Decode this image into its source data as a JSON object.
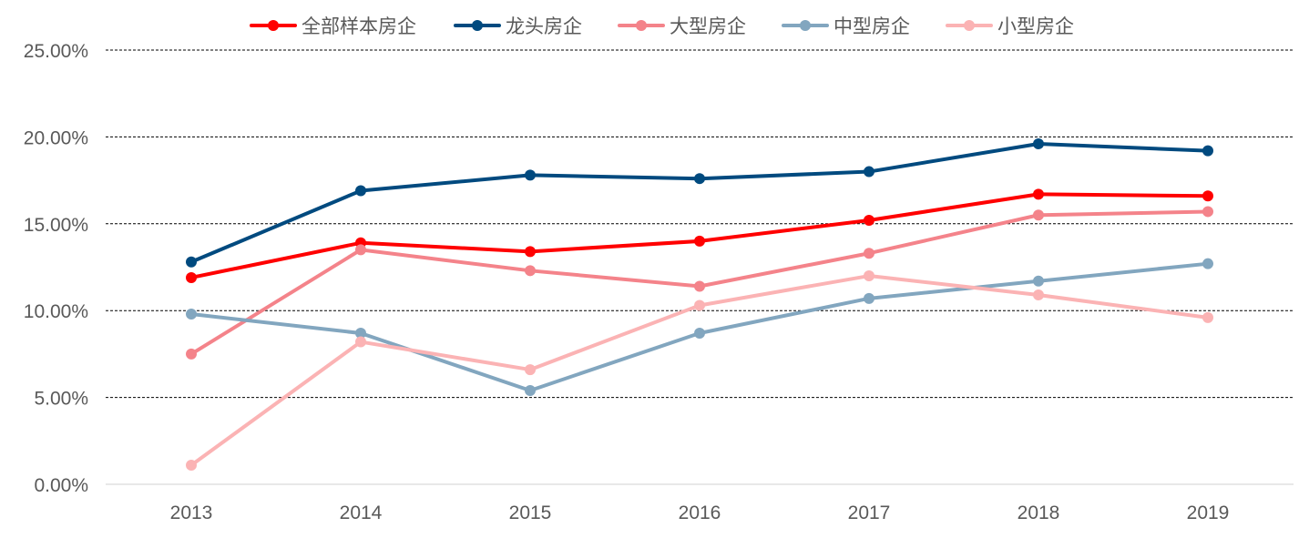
{
  "chart_data": {
    "type": "line",
    "title": "",
    "xlabel": "",
    "ylabel": "",
    "x": [
      "2013",
      "2014",
      "2015",
      "2016",
      "2017",
      "2018",
      "2019"
    ],
    "ylim": [
      0,
      25
    ],
    "yticks": [
      "0.00%",
      "5.00%",
      "10.00%",
      "15.00%",
      "20.00%",
      "25.00%"
    ],
    "grid": "horizontal-dashed",
    "legend_position": "top-center",
    "series": [
      {
        "name": "全部样本房企",
        "color": "#ff0000",
        "values": [
          11.9,
          13.9,
          13.4,
          14.0,
          15.2,
          16.7,
          16.6
        ]
      },
      {
        "name": "龙头房企",
        "color": "#004a7f",
        "values": [
          12.8,
          16.9,
          17.8,
          17.6,
          18.0,
          19.6,
          19.2
        ]
      },
      {
        "name": "大型房企",
        "color": "#f4838a",
        "values": [
          7.5,
          13.5,
          12.3,
          11.4,
          13.3,
          15.5,
          15.7
        ]
      },
      {
        "name": "中型房企",
        "color": "#82a6bf",
        "values": [
          9.8,
          8.7,
          5.4,
          8.7,
          10.7,
          11.7,
          12.7
        ]
      },
      {
        "name": "小型房企",
        "color": "#fbb3b4",
        "values": [
          1.1,
          8.2,
          6.6,
          10.3,
          12.0,
          10.9,
          9.6
        ]
      }
    ]
  }
}
